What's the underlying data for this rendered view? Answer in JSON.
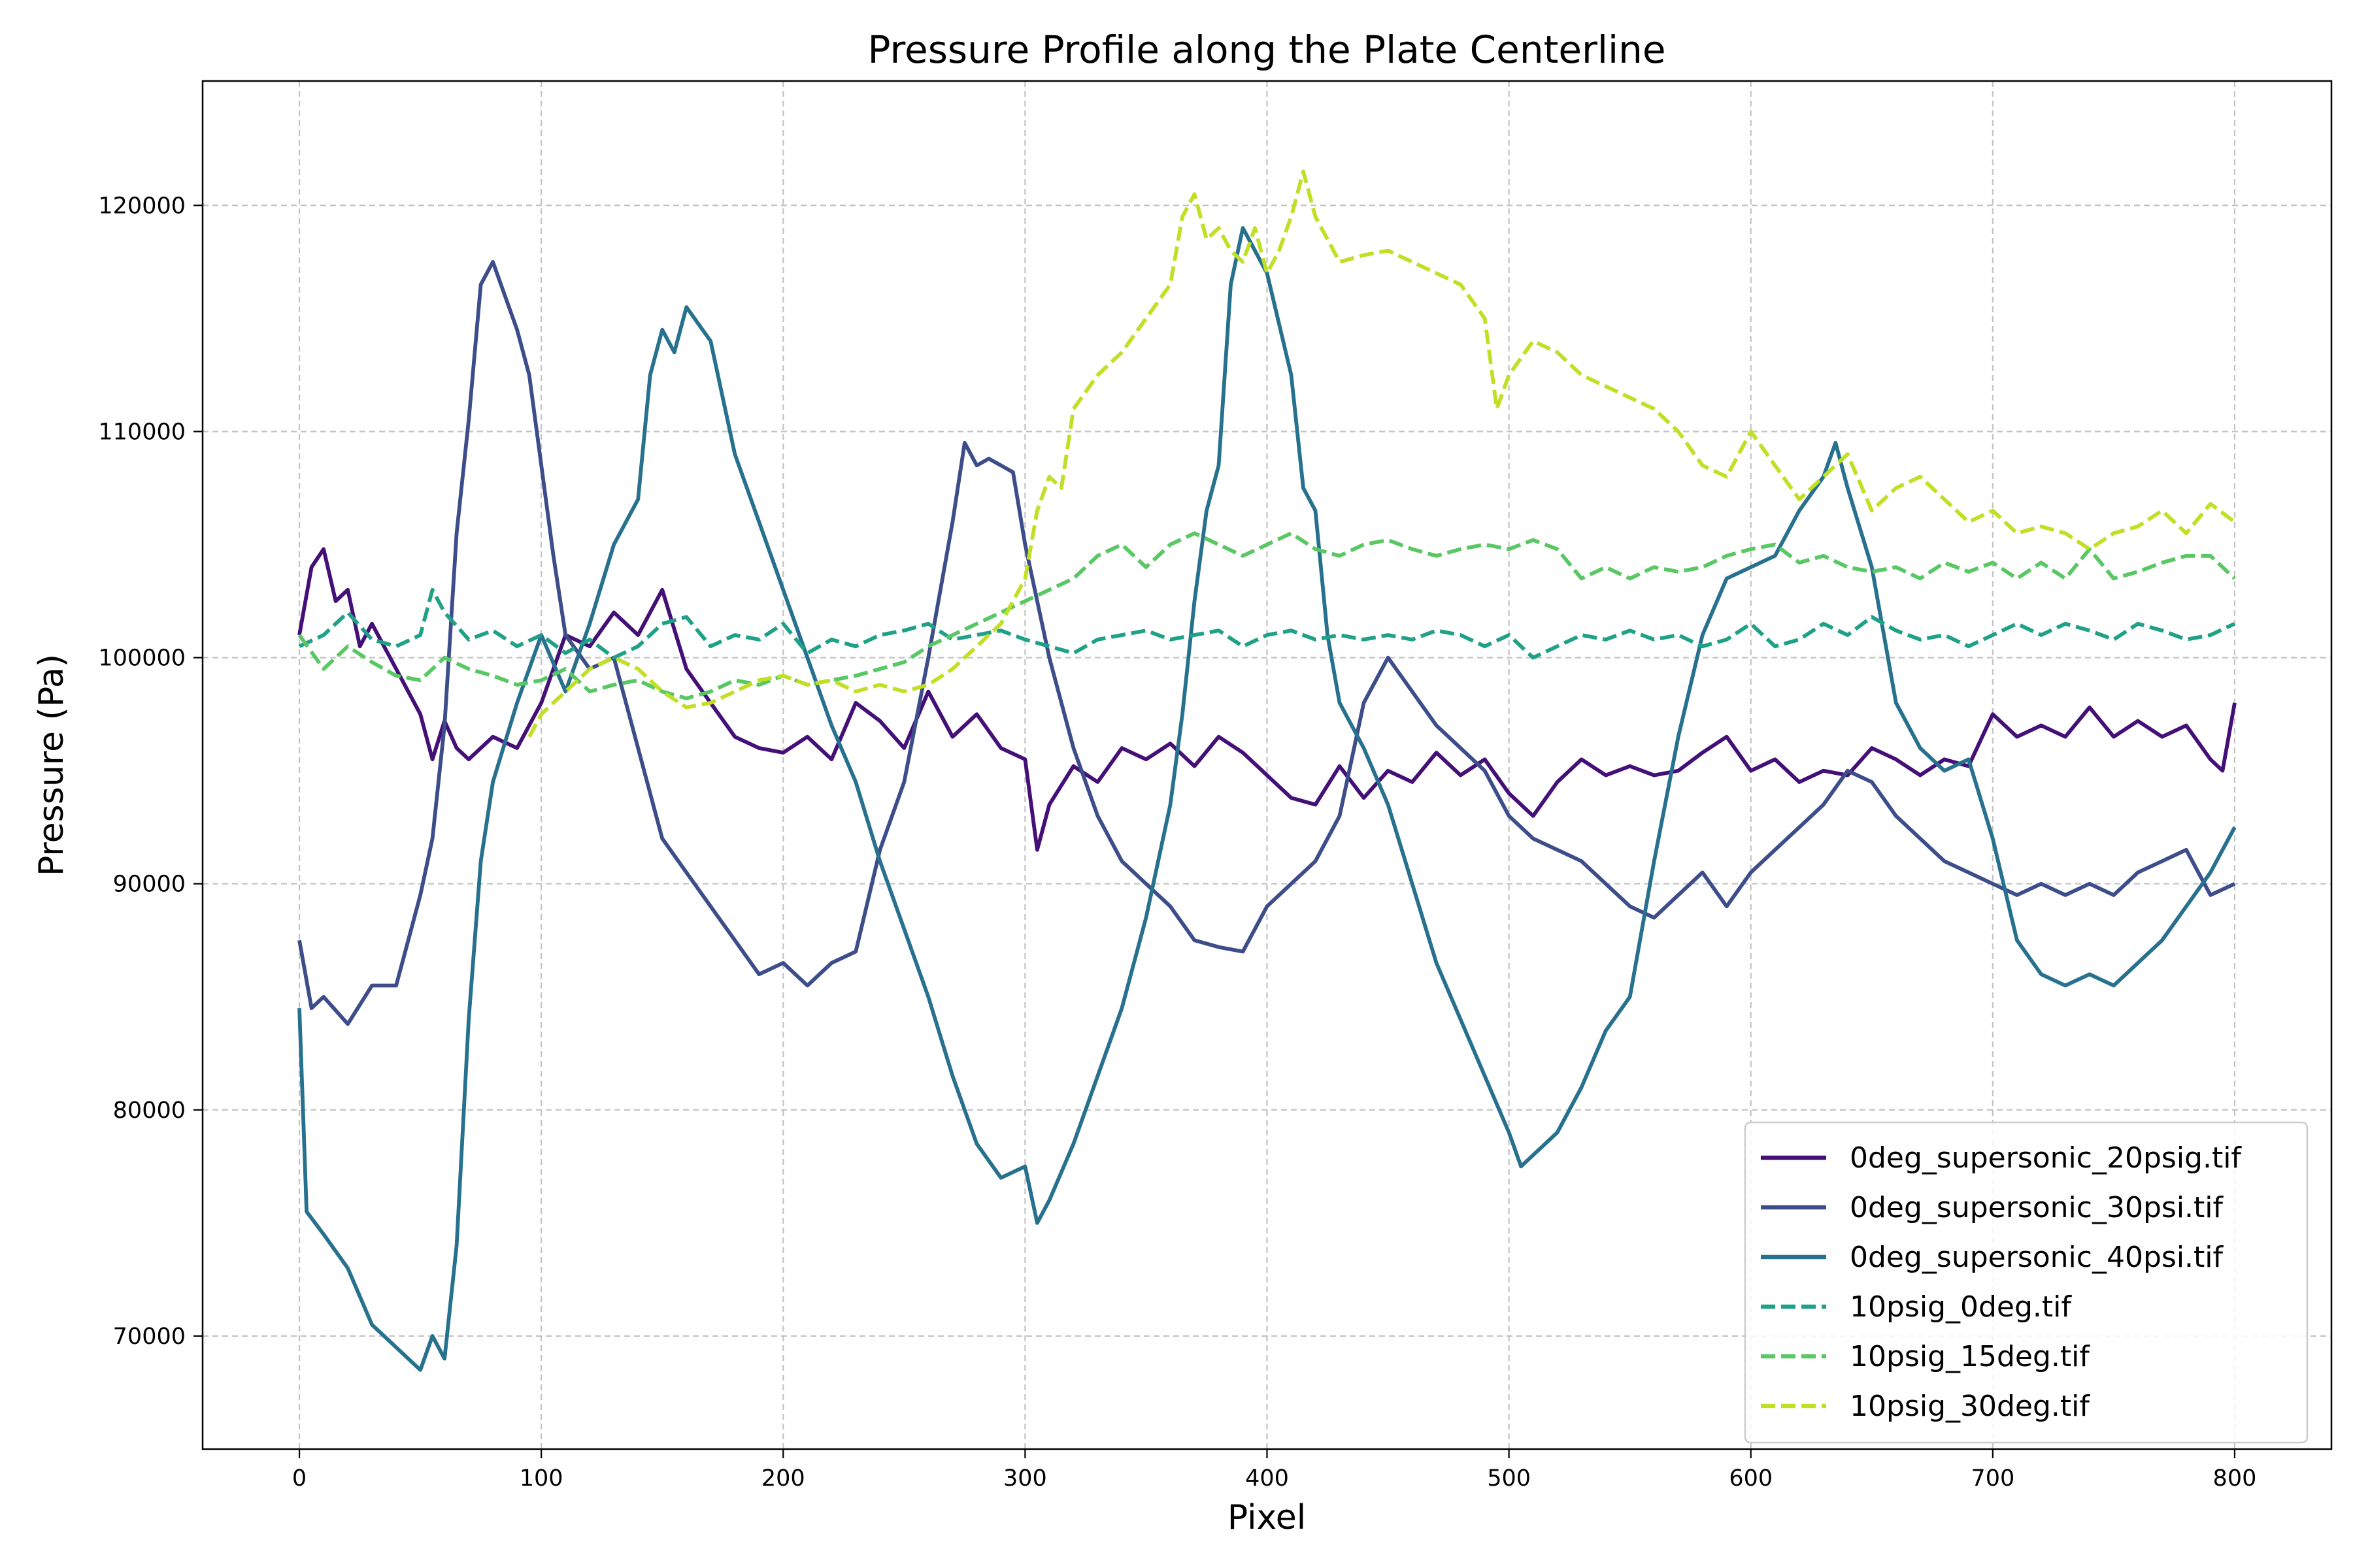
{
  "chart_data": {
    "type": "line",
    "title": "Pressure Profile along the Plate Centerline",
    "xlabel": "Pixel",
    "ylabel": "Pressure (Pa)",
    "xlim": [
      -40,
      840
    ],
    "ylim": [
      65000,
      125500
    ],
    "xticks": [
      0,
      100,
      200,
      300,
      400,
      500,
      600,
      700,
      800
    ],
    "yticks": [
      70000,
      80000,
      90000,
      100000,
      110000,
      120000
    ],
    "grid": true,
    "legend_position": "lower-right",
    "series": [
      {
        "name": "0deg_supersonic_20psig.tif",
        "color": "#440f76",
        "dash": "solid",
        "x": [
          0,
          5,
          10,
          15,
          20,
          25,
          30,
          40,
          50,
          55,
          60,
          65,
          70,
          80,
          90,
          100,
          110,
          120,
          130,
          140,
          150,
          160,
          170,
          180,
          190,
          200,
          210,
          220,
          230,
          240,
          250,
          260,
          270,
          280,
          290,
          300,
          305,
          310,
          320,
          330,
          340,
          350,
          360,
          370,
          380,
          390,
          400,
          410,
          420,
          430,
          440,
          450,
          460,
          470,
          480,
          490,
          500,
          510,
          520,
          530,
          540,
          550,
          560,
          570,
          580,
          590,
          600,
          610,
          620,
          630,
          640,
          650,
          660,
          670,
          680,
          690,
          700,
          710,
          720,
          730,
          740,
          750,
          760,
          770,
          780,
          790,
          795,
          800
        ],
        "values": [
          101000,
          104000,
          104800,
          102500,
          103000,
          100500,
          101500,
          99500,
          97500,
          95500,
          97200,
          96000,
          95500,
          96500,
          96000,
          98000,
          101000,
          100500,
          102000,
          101000,
          103000,
          99500,
          98000,
          96500,
          96000,
          95800,
          96500,
          95500,
          98000,
          97200,
          96000,
          98500,
          96500,
          97500,
          96000,
          95500,
          91500,
          93500,
          95200,
          94500,
          96000,
          95500,
          96200,
          95200,
          96500,
          95800,
          94800,
          93800,
          93500,
          95200,
          93800,
          95000,
          94500,
          95800,
          94800,
          95500,
          94000,
          93000,
          94500,
          95500,
          94800,
          95200,
          94800,
          95000,
          95800,
          96500,
          95000,
          95500,
          94500,
          95000,
          94800,
          96000,
          95500,
          94800,
          95500,
          95200,
          97500,
          96500,
          97000,
          96500,
          97800,
          96500,
          97200,
          96500,
          97000,
          95500,
          95000,
          98000
        ]
      },
      {
        "name": "0deg_supersonic_30psi.tif",
        "color": "#3d4d8a",
        "dash": "solid",
        "x": [
          0,
          5,
          10,
          20,
          30,
          40,
          50,
          55,
          60,
          65,
          70,
          75,
          80,
          85,
          90,
          95,
          100,
          105,
          110,
          120,
          130,
          140,
          150,
          160,
          170,
          180,
          190,
          200,
          210,
          220,
          230,
          240,
          250,
          260,
          270,
          275,
          280,
          285,
          290,
          295,
          300,
          310,
          320,
          330,
          340,
          350,
          360,
          370,
          380,
          390,
          400,
          410,
          420,
          430,
          440,
          450,
          460,
          470,
          480,
          490,
          500,
          510,
          520,
          530,
          540,
          550,
          560,
          570,
          580,
          590,
          600,
          610,
          620,
          630,
          640,
          650,
          660,
          670,
          680,
          690,
          700,
          710,
          720,
          730,
          740,
          750,
          760,
          770,
          780,
          790,
          800
        ],
        "values": [
          87500,
          84500,
          85000,
          83800,
          85500,
          85500,
          89500,
          92000,
          97000,
          105500,
          110500,
          116500,
          117500,
          116000,
          114500,
          112500,
          108500,
          104500,
          101000,
          99500,
          100000,
          96000,
          92000,
          90500,
          89000,
          87500,
          86000,
          86500,
          85500,
          86500,
          87000,
          91500,
          94500,
          100000,
          106000,
          109500,
          108500,
          108800,
          108500,
          108200,
          105000,
          100000,
          96000,
          93000,
          91000,
          90000,
          89000,
          87500,
          87200,
          87000,
          89000,
          90000,
          91000,
          93000,
          98000,
          100000,
          98500,
          97000,
          96000,
          95000,
          93000,
          92000,
          91500,
          91000,
          90000,
          89000,
          88500,
          89500,
          90500,
          89000,
          90500,
          91500,
          92500,
          93500,
          95000,
          94500,
          93000,
          92000,
          91000,
          90500,
          90000,
          89500,
          90000,
          89500,
          90000,
          89500,
          90500,
          91000,
          91500,
          89500,
          90000
        ]
      },
      {
        "name": "0deg_supersonic_40psi.tif",
        "color": "#27718e",
        "dash": "solid",
        "x": [
          0,
          3,
          10,
          20,
          30,
          40,
          50,
          55,
          60,
          65,
          70,
          75,
          80,
          90,
          100,
          110,
          120,
          130,
          140,
          145,
          150,
          155,
          160,
          170,
          180,
          190,
          200,
          210,
          220,
          230,
          240,
          250,
          260,
          270,
          275,
          280,
          290,
          300,
          305,
          310,
          320,
          330,
          340,
          350,
          360,
          365,
          370,
          375,
          380,
          385,
          390,
          400,
          410,
          415,
          420,
          425,
          430,
          440,
          450,
          460,
          470,
          480,
          490,
          500,
          505,
          510,
          520,
          530,
          540,
          550,
          560,
          570,
          580,
          590,
          600,
          610,
          620,
          630,
          635,
          640,
          650,
          660,
          670,
          680,
          690,
          700,
          710,
          720,
          730,
          740,
          750,
          760,
          770,
          780,
          790,
          800
        ],
        "values": [
          84500,
          75500,
          74500,
          73000,
          70500,
          69500,
          68500,
          70000,
          69000,
          74000,
          84000,
          91000,
          94500,
          98000,
          101000,
          98500,
          101500,
          105000,
          107000,
          112500,
          114500,
          113500,
          115500,
          114000,
          109000,
          106000,
          103000,
          100000,
          97000,
          94500,
          91000,
          88000,
          85000,
          81500,
          80000,
          78500,
          77000,
          77500,
          75000,
          76000,
          78500,
          81500,
          84500,
          88500,
          93500,
          97500,
          102500,
          106500,
          108500,
          116500,
          119000,
          117000,
          112500,
          107500,
          106500,
          101000,
          98000,
          96000,
          93500,
          90000,
          86500,
          84000,
          81500,
          79000,
          77500,
          78000,
          79000,
          81000,
          83500,
          85000,
          91000,
          96500,
          101000,
          103500,
          104000,
          104500,
          106500,
          108000,
          109500,
          107500,
          104000,
          98000,
          96000,
          95000,
          95500,
          92000,
          87500,
          86000,
          85500,
          86000,
          85500,
          86500,
          87500,
          89000,
          90500,
          92500
        ]
      },
      {
        "name": "10psig_0deg.tif",
        "color": "#1fa187",
        "dash": "dashed",
        "x": [
          0,
          10,
          20,
          30,
          40,
          50,
          55,
          60,
          70,
          80,
          90,
          100,
          110,
          120,
          130,
          140,
          150,
          160,
          170,
          180,
          190,
          200,
          210,
          220,
          230,
          240,
          250,
          260,
          270,
          280,
          290,
          300,
          310,
          320,
          330,
          340,
          350,
          360,
          370,
          380,
          390,
          400,
          410,
          420,
          430,
          440,
          450,
          460,
          470,
          480,
          490,
          500,
          510,
          520,
          530,
          540,
          550,
          560,
          570,
          580,
          590,
          600,
          610,
          620,
          630,
          640,
          650,
          660,
          670,
          680,
          690,
          700,
          710,
          720,
          730,
          740,
          750,
          760,
          770,
          780,
          790,
          800
        ],
        "values": [
          100500,
          101000,
          102000,
          100800,
          100500,
          101000,
          103000,
          102000,
          100800,
          101200,
          100500,
          101000,
          100200,
          100800,
          100000,
          100500,
          101500,
          101800,
          100500,
          101000,
          100800,
          101500,
          100200,
          100800,
          100500,
          101000,
          101200,
          101500,
          100800,
          101000,
          101200,
          100800,
          100500,
          100200,
          100800,
          101000,
          101200,
          100800,
          101000,
          101200,
          100500,
          101000,
          101200,
          100800,
          101000,
          100800,
          101000,
          100800,
          101200,
          101000,
          100500,
          101000,
          100000,
          100500,
          101000,
          100800,
          101200,
          100800,
          101000,
          100500,
          100800,
          101500,
          100500,
          100800,
          101500,
          101000,
          101800,
          101200,
          100800,
          101000,
          100500,
          101000,
          101500,
          101000,
          101500,
          101200,
          100800,
          101500,
          101200,
          100800,
          101000,
          101500
        ]
      },
      {
        "name": "10psig_15deg.tif",
        "color": "#59c764",
        "dash": "dashed",
        "x": [
          0,
          10,
          20,
          30,
          40,
          50,
          60,
          70,
          80,
          90,
          100,
          110,
          120,
          130,
          140,
          150,
          160,
          170,
          180,
          190,
          200,
          210,
          220,
          230,
          240,
          250,
          260,
          270,
          280,
          290,
          300,
          310,
          320,
          330,
          340,
          350,
          360,
          370,
          380,
          390,
          400,
          410,
          420,
          430,
          440,
          450,
          460,
          470,
          480,
          490,
          500,
          510,
          520,
          530,
          540,
          550,
          560,
          570,
          580,
          590,
          600,
          610,
          620,
          630,
          640,
          650,
          660,
          670,
          680,
          690,
          700,
          710,
          720,
          730,
          740,
          750,
          760,
          770,
          780,
          790,
          800
        ],
        "values": [
          101000,
          99500,
          100500,
          99800,
          99200,
          99000,
          100000,
          99500,
          99200,
          98800,
          99000,
          99500,
          98500,
          98800,
          99000,
          98500,
          98200,
          98500,
          99000,
          98800,
          99200,
          98800,
          99000,
          99200,
          99500,
          99800,
          100500,
          101000,
          101500,
          102000,
          102500,
          103000,
          103500,
          104500,
          105000,
          104000,
          105000,
          105500,
          105000,
          104500,
          105000,
          105500,
          104800,
          104500,
          105000,
          105200,
          104800,
          104500,
          104800,
          105000,
          104800,
          105200,
          104800,
          103500,
          104000,
          103500,
          104000,
          103800,
          104000,
          104500,
          104800,
          105000,
          104200,
          104500,
          104000,
          103800,
          104000,
          103500,
          104200,
          103800,
          104200,
          103500,
          104200,
          103500,
          104800,
          103500,
          103800,
          104200,
          104500,
          104500,
          103500
        ]
      },
      {
        "name": "10psig_30deg.tif",
        "color": "#c0df25",
        "dash": "dashed",
        "x": [
          95,
          100,
          110,
          120,
          130,
          140,
          150,
          160,
          170,
          180,
          190,
          200,
          210,
          220,
          230,
          240,
          250,
          260,
          270,
          280,
          290,
          300,
          305,
          310,
          315,
          320,
          330,
          340,
          350,
          360,
          365,
          370,
          375,
          380,
          385,
          390,
          395,
          400,
          405,
          410,
          415,
          420,
          425,
          430,
          440,
          450,
          460,
          470,
          480,
          490,
          495,
          500,
          510,
          520,
          530,
          540,
          550,
          560,
          570,
          580,
          590,
          600,
          610,
          620,
          630,
          640,
          650,
          660,
          670,
          680,
          690,
          700,
          710,
          720,
          730,
          740,
          750,
          760,
          770,
          780,
          790,
          800
        ],
        "values": [
          96500,
          97500,
          98500,
          99500,
          100000,
          99500,
          98500,
          97800,
          98000,
          98500,
          99000,
          99200,
          98800,
          99000,
          98500,
          98800,
          98500,
          98800,
          99500,
          100500,
          101500,
          103500,
          106500,
          108000,
          107500,
          111000,
          112500,
          113500,
          115000,
          116500,
          119500,
          120500,
          118500,
          119000,
          118000,
          117500,
          119000,
          117000,
          118000,
          119500,
          121500,
          119500,
          118500,
          117500,
          117800,
          118000,
          117500,
          117000,
          116500,
          115000,
          111000,
          112500,
          114000,
          113500,
          112500,
          112000,
          111500,
          111000,
          110000,
          108500,
          108000,
          110000,
          108500,
          107000,
          108000,
          109000,
          106500,
          107500,
          108000,
          107000,
          106000,
          106500,
          105500,
          105800,
          105500,
          104800,
          105500,
          105800,
          106500,
          105500,
          106800,
          106000
        ]
      }
    ]
  }
}
